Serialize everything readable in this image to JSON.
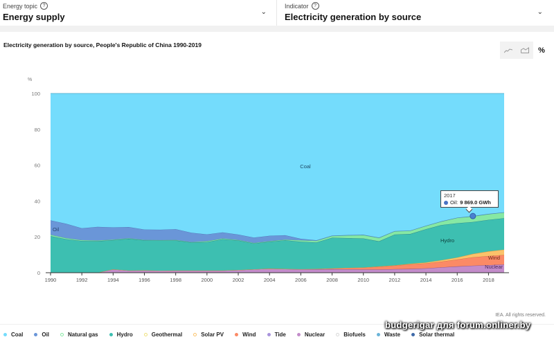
{
  "topbar": {
    "topic": {
      "label": "Energy topic",
      "value": "Energy supply",
      "help_icon": "?"
    },
    "indicator": {
      "label": "Indicator",
      "value": "Electricity generation by source",
      "help_icon": "?"
    }
  },
  "chart_controls": {
    "line_icon": "line-chart-icon",
    "area_icon": "area-chart-icon",
    "percent_label": "%"
  },
  "tooltip": {
    "year": "2017",
    "series": "Oil:",
    "value": "9 869.0 GWh"
  },
  "credit": "IEA. All rights reserved.",
  "watermark": "budgerigar для forum.onliner.by",
  "colors": {
    "coal": "#74dcfc",
    "oil": "#6a96d8",
    "natural_gas": "#86e8a4",
    "hydro": "#3dbfb1",
    "solar_pv": "#fbc26a",
    "wind": "#fb8a66",
    "nuclear": "#c38cca",
    "tide": "#a994dc",
    "geothermal": "#efe07a",
    "biofuels": "#d8d8d8",
    "waste": "#6ab4d8",
    "solar_thermal": "#3f6aa8"
  },
  "chart_data": {
    "type": "area",
    "stacked": true,
    "normalized": true,
    "title": "Electricity generation by source, People's Republic of China 1990-2019",
    "ylabel": "%",
    "xlabel": "",
    "ylim": [
      0,
      100
    ],
    "xlim": [
      1990,
      2019
    ],
    "yticks": [
      "0",
      "20",
      "40",
      "60",
      "80",
      "100"
    ],
    "xticks": [
      "1990",
      "1992",
      "1994",
      "1996",
      "1998",
      "2000",
      "2002",
      "2004",
      "2006",
      "2008",
      "2010",
      "2012",
      "2014",
      "2016",
      "2018"
    ],
    "x": [
      1990,
      1991,
      1992,
      1993,
      1994,
      1995,
      1996,
      1997,
      1998,
      1999,
      2000,
      2001,
      2002,
      2003,
      2004,
      2005,
      2006,
      2007,
      2008,
      2009,
      2010,
      2011,
      2012,
      2013,
      2014,
      2015,
      2016,
      2017,
      2018,
      2019
    ],
    "series": [
      {
        "name": "Nuclear",
        "values": [
          0,
          0,
          0,
          0,
          1.9,
          1.2,
          1.3,
          1.1,
          1.2,
          1.2,
          1.2,
          1.2,
          1.5,
          1.9,
          2.3,
          2.1,
          1.9,
          1.9,
          2.0,
          1.9,
          1.8,
          1.8,
          2.0,
          2.1,
          2.4,
          3.0,
          3.5,
          3.9,
          4.2,
          4.6
        ]
      },
      {
        "name": "Wind",
        "values": [
          0,
          0,
          0,
          0,
          0,
          0,
          0,
          0,
          0,
          0,
          0,
          0,
          0,
          0,
          0,
          0,
          0.1,
          0.2,
          0.4,
          0.8,
          1.1,
          1.6,
          2.0,
          2.6,
          2.8,
          3.2,
          3.9,
          4.7,
          5.1,
          5.3
        ]
      },
      {
        "name": "Solar PV",
        "values": [
          0,
          0,
          0,
          0,
          0,
          0,
          0,
          0,
          0,
          0,
          0,
          0,
          0,
          0,
          0,
          0,
          0,
          0,
          0,
          0,
          0,
          0.1,
          0.1,
          0.3,
          0.5,
          0.8,
          1.1,
          1.9,
          2.6,
          3.0
        ]
      },
      {
        "name": "Hydro",
        "values": [
          20.4,
          18.7,
          17.7,
          17.6,
          16.3,
          17.7,
          16.8,
          16.9,
          16.8,
          15.7,
          15.9,
          17.5,
          16.5,
          14.4,
          15.0,
          16.0,
          15.3,
          14.8,
          17.1,
          16.6,
          16.2,
          14.0,
          17.2,
          16.6,
          18.6,
          19.6,
          19.1,
          17.8,
          17.6,
          17.5
        ]
      },
      {
        "name": "Natural gas",
        "values": [
          0.8,
          0.6,
          0.5,
          0.4,
          0.3,
          0.3,
          0.2,
          0.2,
          0.3,
          0.2,
          0.5,
          0.4,
          0.3,
          0.3,
          0.3,
          0.4,
          0.8,
          0.9,
          1.0,
          1.5,
          1.9,
          1.9,
          1.8,
          1.8,
          1.8,
          2.0,
          3.0,
          3.1,
          3.2,
          3.2
        ]
      },
      {
        "name": "Oil",
        "values": [
          8.0,
          8.0,
          6.6,
          7.6,
          6.8,
          6.3,
          5.8,
          5.8,
          6.0,
          5.2,
          3.8,
          3.4,
          3.0,
          3.0,
          3.0,
          2.4,
          0.8,
          0.3,
          0.2,
          0.2,
          0.2,
          0.2,
          0.1,
          0.1,
          0.1,
          0.1,
          0.1,
          0.2,
          0.1,
          0.1
        ]
      },
      {
        "name": "Coal",
        "values": [
          70.8,
          72.7,
          75.2,
          74.4,
          74.7,
          74.5,
          75.9,
          76.0,
          75.7,
          77.7,
          78.6,
          77.5,
          78.7,
          80.4,
          79.4,
          79.1,
          81.1,
          81.9,
          79.3,
          79.0,
          78.8,
          80.4,
          76.8,
          76.5,
          73.8,
          71.3,
          69.3,
          68.4,
          67.2,
          66.3
        ]
      }
    ],
    "legend": [
      "Coal",
      "Oil",
      "Natural gas",
      "Hydro",
      "Geothermal",
      "Solar PV",
      "Wind",
      "Tide",
      "Nuclear",
      "Biofuels",
      "Waste",
      "Solar thermal"
    ],
    "legend_position": "bottom",
    "annotations": [
      "Coal",
      "Oil",
      "Hydro",
      "Wind",
      "Nuclear"
    ],
    "grid": false
  }
}
